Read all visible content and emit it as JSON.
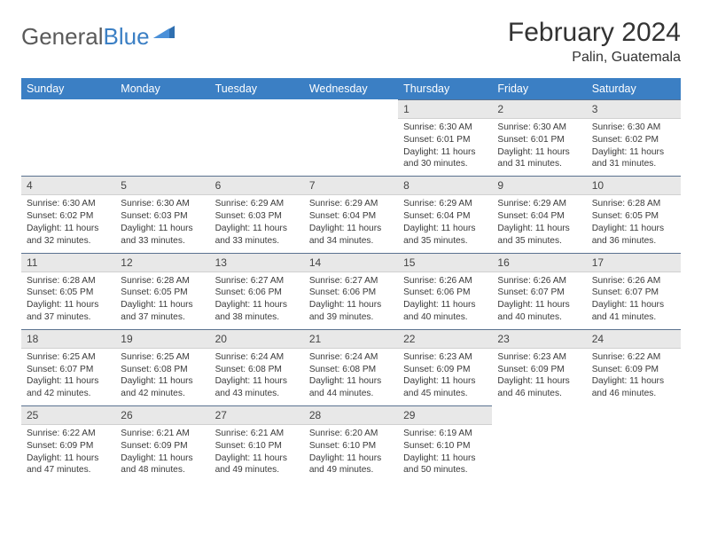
{
  "logo": {
    "word1": "General",
    "word2": "Blue"
  },
  "title": "February 2024",
  "location": "Palin, Guatemala",
  "colors": {
    "header_bg": "#3b7fc4",
    "header_fg": "#ffffff",
    "daynum_bg": "#e8e8e8",
    "daynum_border_top": "#5b7290",
    "text": "#333333"
  },
  "day_headers": [
    "Sunday",
    "Monday",
    "Tuesday",
    "Wednesday",
    "Thursday",
    "Friday",
    "Saturday"
  ],
  "weeks": [
    [
      {
        "n": "",
        "sr": "",
        "ss": "",
        "dl": ""
      },
      {
        "n": "",
        "sr": "",
        "ss": "",
        "dl": ""
      },
      {
        "n": "",
        "sr": "",
        "ss": "",
        "dl": ""
      },
      {
        "n": "",
        "sr": "",
        "ss": "",
        "dl": ""
      },
      {
        "n": "1",
        "sr": "Sunrise: 6:30 AM",
        "ss": "Sunset: 6:01 PM",
        "dl": "Daylight: 11 hours and 30 minutes."
      },
      {
        "n": "2",
        "sr": "Sunrise: 6:30 AM",
        "ss": "Sunset: 6:01 PM",
        "dl": "Daylight: 11 hours and 31 minutes."
      },
      {
        "n": "3",
        "sr": "Sunrise: 6:30 AM",
        "ss": "Sunset: 6:02 PM",
        "dl": "Daylight: 11 hours and 31 minutes."
      }
    ],
    [
      {
        "n": "4",
        "sr": "Sunrise: 6:30 AM",
        "ss": "Sunset: 6:02 PM",
        "dl": "Daylight: 11 hours and 32 minutes."
      },
      {
        "n": "5",
        "sr": "Sunrise: 6:30 AM",
        "ss": "Sunset: 6:03 PM",
        "dl": "Daylight: 11 hours and 33 minutes."
      },
      {
        "n": "6",
        "sr": "Sunrise: 6:29 AM",
        "ss": "Sunset: 6:03 PM",
        "dl": "Daylight: 11 hours and 33 minutes."
      },
      {
        "n": "7",
        "sr": "Sunrise: 6:29 AM",
        "ss": "Sunset: 6:04 PM",
        "dl": "Daylight: 11 hours and 34 minutes."
      },
      {
        "n": "8",
        "sr": "Sunrise: 6:29 AM",
        "ss": "Sunset: 6:04 PM",
        "dl": "Daylight: 11 hours and 35 minutes."
      },
      {
        "n": "9",
        "sr": "Sunrise: 6:29 AM",
        "ss": "Sunset: 6:04 PM",
        "dl": "Daylight: 11 hours and 35 minutes."
      },
      {
        "n": "10",
        "sr": "Sunrise: 6:28 AM",
        "ss": "Sunset: 6:05 PM",
        "dl": "Daylight: 11 hours and 36 minutes."
      }
    ],
    [
      {
        "n": "11",
        "sr": "Sunrise: 6:28 AM",
        "ss": "Sunset: 6:05 PM",
        "dl": "Daylight: 11 hours and 37 minutes."
      },
      {
        "n": "12",
        "sr": "Sunrise: 6:28 AM",
        "ss": "Sunset: 6:05 PM",
        "dl": "Daylight: 11 hours and 37 minutes."
      },
      {
        "n": "13",
        "sr": "Sunrise: 6:27 AM",
        "ss": "Sunset: 6:06 PM",
        "dl": "Daylight: 11 hours and 38 minutes."
      },
      {
        "n": "14",
        "sr": "Sunrise: 6:27 AM",
        "ss": "Sunset: 6:06 PM",
        "dl": "Daylight: 11 hours and 39 minutes."
      },
      {
        "n": "15",
        "sr": "Sunrise: 6:26 AM",
        "ss": "Sunset: 6:06 PM",
        "dl": "Daylight: 11 hours and 40 minutes."
      },
      {
        "n": "16",
        "sr": "Sunrise: 6:26 AM",
        "ss": "Sunset: 6:07 PM",
        "dl": "Daylight: 11 hours and 40 minutes."
      },
      {
        "n": "17",
        "sr": "Sunrise: 6:26 AM",
        "ss": "Sunset: 6:07 PM",
        "dl": "Daylight: 11 hours and 41 minutes."
      }
    ],
    [
      {
        "n": "18",
        "sr": "Sunrise: 6:25 AM",
        "ss": "Sunset: 6:07 PM",
        "dl": "Daylight: 11 hours and 42 minutes."
      },
      {
        "n": "19",
        "sr": "Sunrise: 6:25 AM",
        "ss": "Sunset: 6:08 PM",
        "dl": "Daylight: 11 hours and 42 minutes."
      },
      {
        "n": "20",
        "sr": "Sunrise: 6:24 AM",
        "ss": "Sunset: 6:08 PM",
        "dl": "Daylight: 11 hours and 43 minutes."
      },
      {
        "n": "21",
        "sr": "Sunrise: 6:24 AM",
        "ss": "Sunset: 6:08 PM",
        "dl": "Daylight: 11 hours and 44 minutes."
      },
      {
        "n": "22",
        "sr": "Sunrise: 6:23 AM",
        "ss": "Sunset: 6:09 PM",
        "dl": "Daylight: 11 hours and 45 minutes."
      },
      {
        "n": "23",
        "sr": "Sunrise: 6:23 AM",
        "ss": "Sunset: 6:09 PM",
        "dl": "Daylight: 11 hours and 46 minutes."
      },
      {
        "n": "24",
        "sr": "Sunrise: 6:22 AM",
        "ss": "Sunset: 6:09 PM",
        "dl": "Daylight: 11 hours and 46 minutes."
      }
    ],
    [
      {
        "n": "25",
        "sr": "Sunrise: 6:22 AM",
        "ss": "Sunset: 6:09 PM",
        "dl": "Daylight: 11 hours and 47 minutes."
      },
      {
        "n": "26",
        "sr": "Sunrise: 6:21 AM",
        "ss": "Sunset: 6:09 PM",
        "dl": "Daylight: 11 hours and 48 minutes."
      },
      {
        "n": "27",
        "sr": "Sunrise: 6:21 AM",
        "ss": "Sunset: 6:10 PM",
        "dl": "Daylight: 11 hours and 49 minutes."
      },
      {
        "n": "28",
        "sr": "Sunrise: 6:20 AM",
        "ss": "Sunset: 6:10 PM",
        "dl": "Daylight: 11 hours and 49 minutes."
      },
      {
        "n": "29",
        "sr": "Sunrise: 6:19 AM",
        "ss": "Sunset: 6:10 PM",
        "dl": "Daylight: 11 hours and 50 minutes."
      },
      {
        "n": "",
        "sr": "",
        "ss": "",
        "dl": ""
      },
      {
        "n": "",
        "sr": "",
        "ss": "",
        "dl": ""
      }
    ]
  ]
}
